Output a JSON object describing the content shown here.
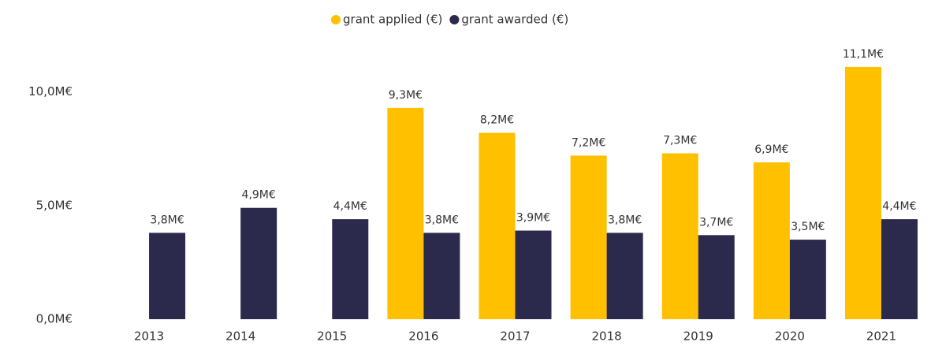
{
  "chart_data": {
    "type": "bar",
    "categories": [
      "2013",
      "2014",
      "2015",
      "2016",
      "2017",
      "2018",
      "2019",
      "2020",
      "2021"
    ],
    "series": [
      {
        "name": "grant applied (€)",
        "color": "#ffc000",
        "values": [
          null,
          null,
          null,
          9.3,
          8.2,
          7.2,
          7.3,
          6.9,
          11.1
        ],
        "value_labels": [
          null,
          null,
          null,
          "9,3M€",
          "8,2M€",
          "7,2M€",
          "7,3M€",
          "6,9M€",
          "11,1M€"
        ]
      },
      {
        "name": "grant awarded (€)",
        "color": "#2b2a4c",
        "values": [
          3.8,
          4.9,
          4.4,
          3.8,
          3.9,
          3.8,
          3.7,
          3.5,
          4.4
        ],
        "value_labels": [
          "3,8M€",
          "4,9M€",
          "4,4M€",
          "3,8M€",
          "3,9M€",
          "3,8M€",
          "3,7M€",
          "3,5M€",
          "4,4M€"
        ]
      }
    ],
    "ylim": [
      0,
      12
    ],
    "yticks": [
      {
        "value": 0,
        "label": "0,0M€"
      },
      {
        "value": 5,
        "label": "5,0M€"
      },
      {
        "value": 10,
        "label": "10,0M€"
      }
    ],
    "grid": false,
    "legend": "top"
  }
}
